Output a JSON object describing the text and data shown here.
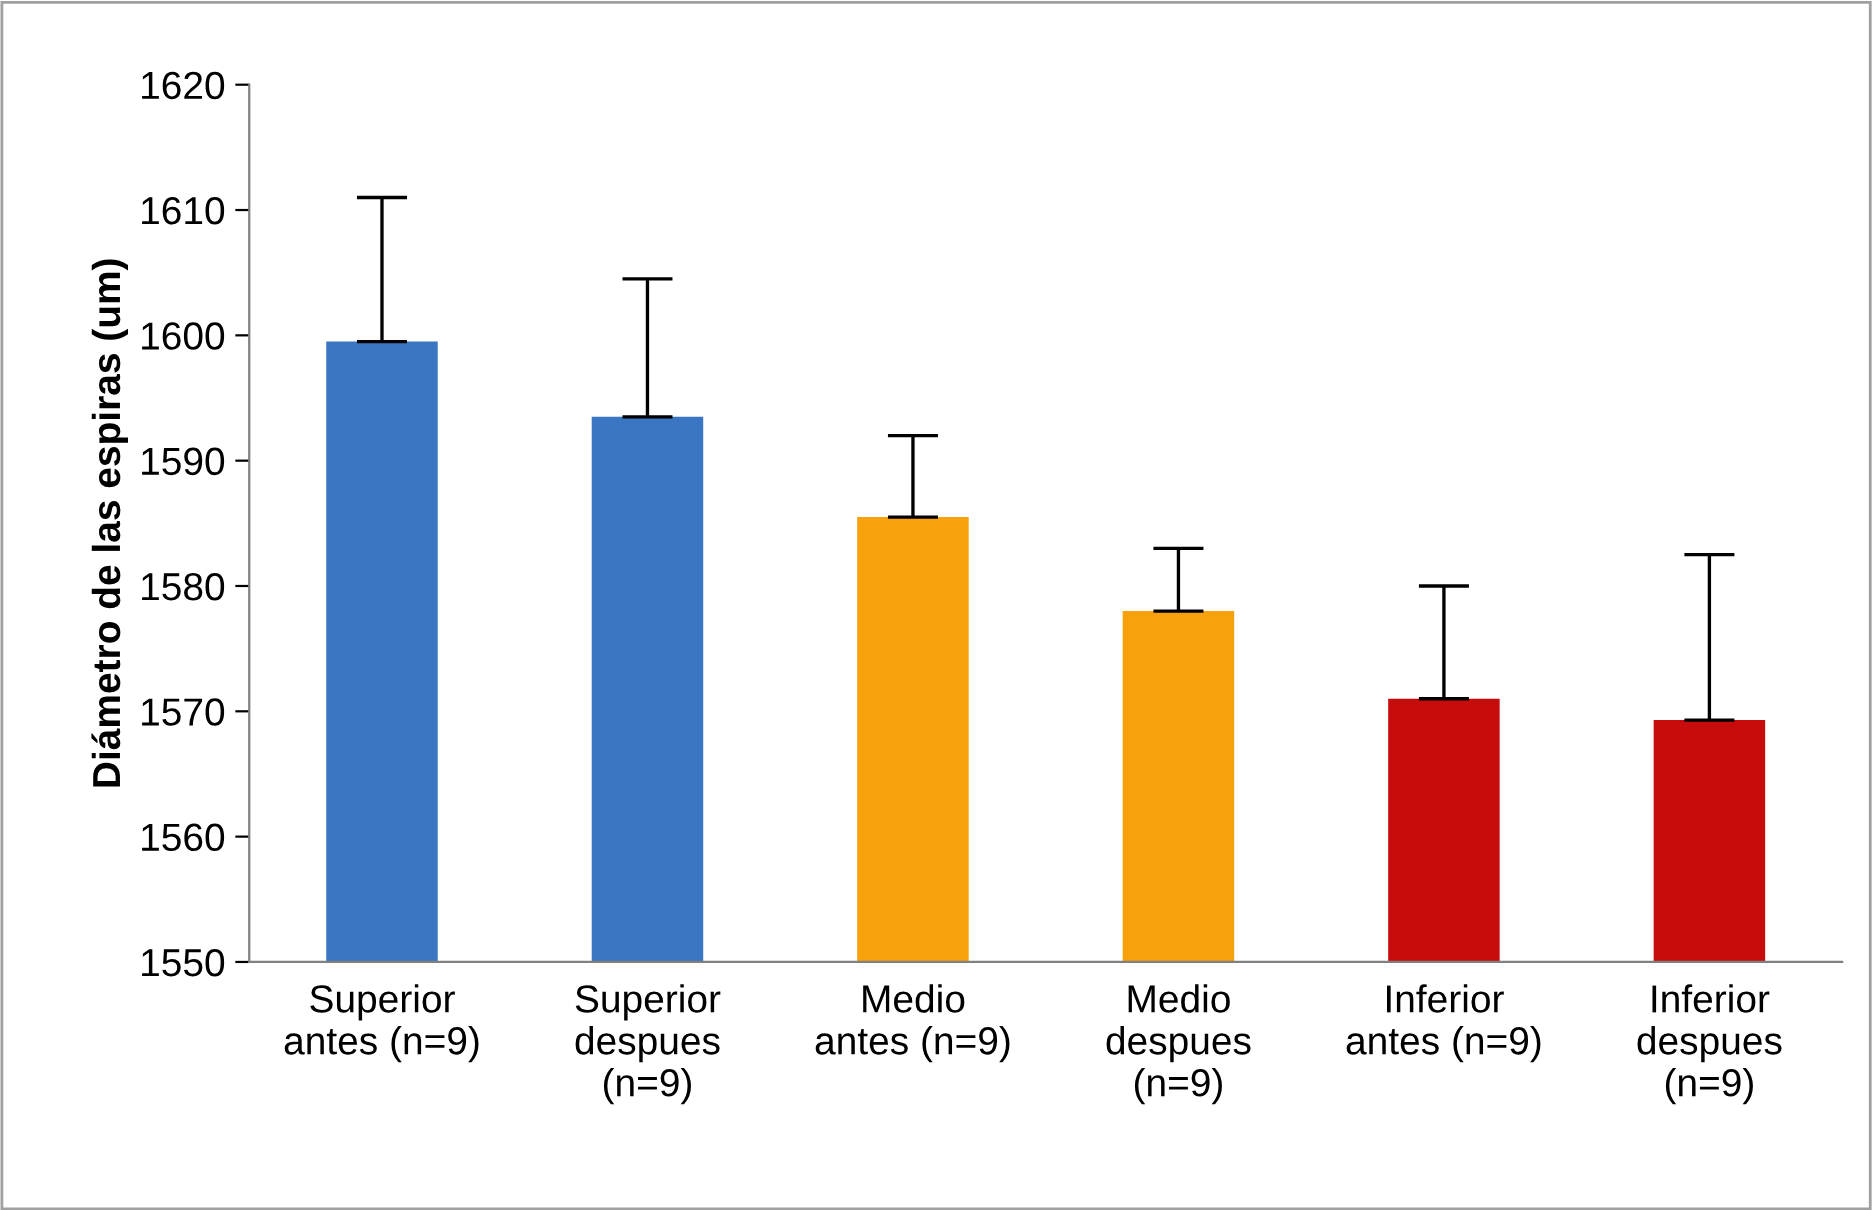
{
  "chart_data": {
    "type": "bar",
    "ylabel": "Diámetro de las espiras (um)",
    "categories": [
      "Superior\nantes (n=9)",
      "Superior\ndespues\n(n=9)",
      "Medio\nantes (n=9)",
      "Medio\ndespues\n(n=9)",
      "Inferior\nantes (n=9)",
      "Inferior\ndespues\n(n=9)"
    ],
    "values": [
      1599.5,
      1593.5,
      1585.5,
      1578,
      1571,
      1569.3
    ],
    "colors": [
      "#3b76c2",
      "#3b76c2",
      "#f7a10c",
      "#f7a10c",
      "#c60c0c",
      "#c60c0c"
    ],
    "errors": [
      [
        1599.5,
        1611
      ],
      [
        1593.5,
        1604.5
      ],
      [
        1585.5,
        1592
      ],
      [
        1578,
        1583
      ],
      [
        1571,
        1580
      ],
      [
        1569.3,
        1582.5
      ]
    ],
    "ylim": [
      1550,
      1620
    ],
    "yticks": [
      1550,
      1560,
      1570,
      1580,
      1590,
      1600,
      1610,
      1620
    ],
    "grid": false,
    "legend": false
  }
}
